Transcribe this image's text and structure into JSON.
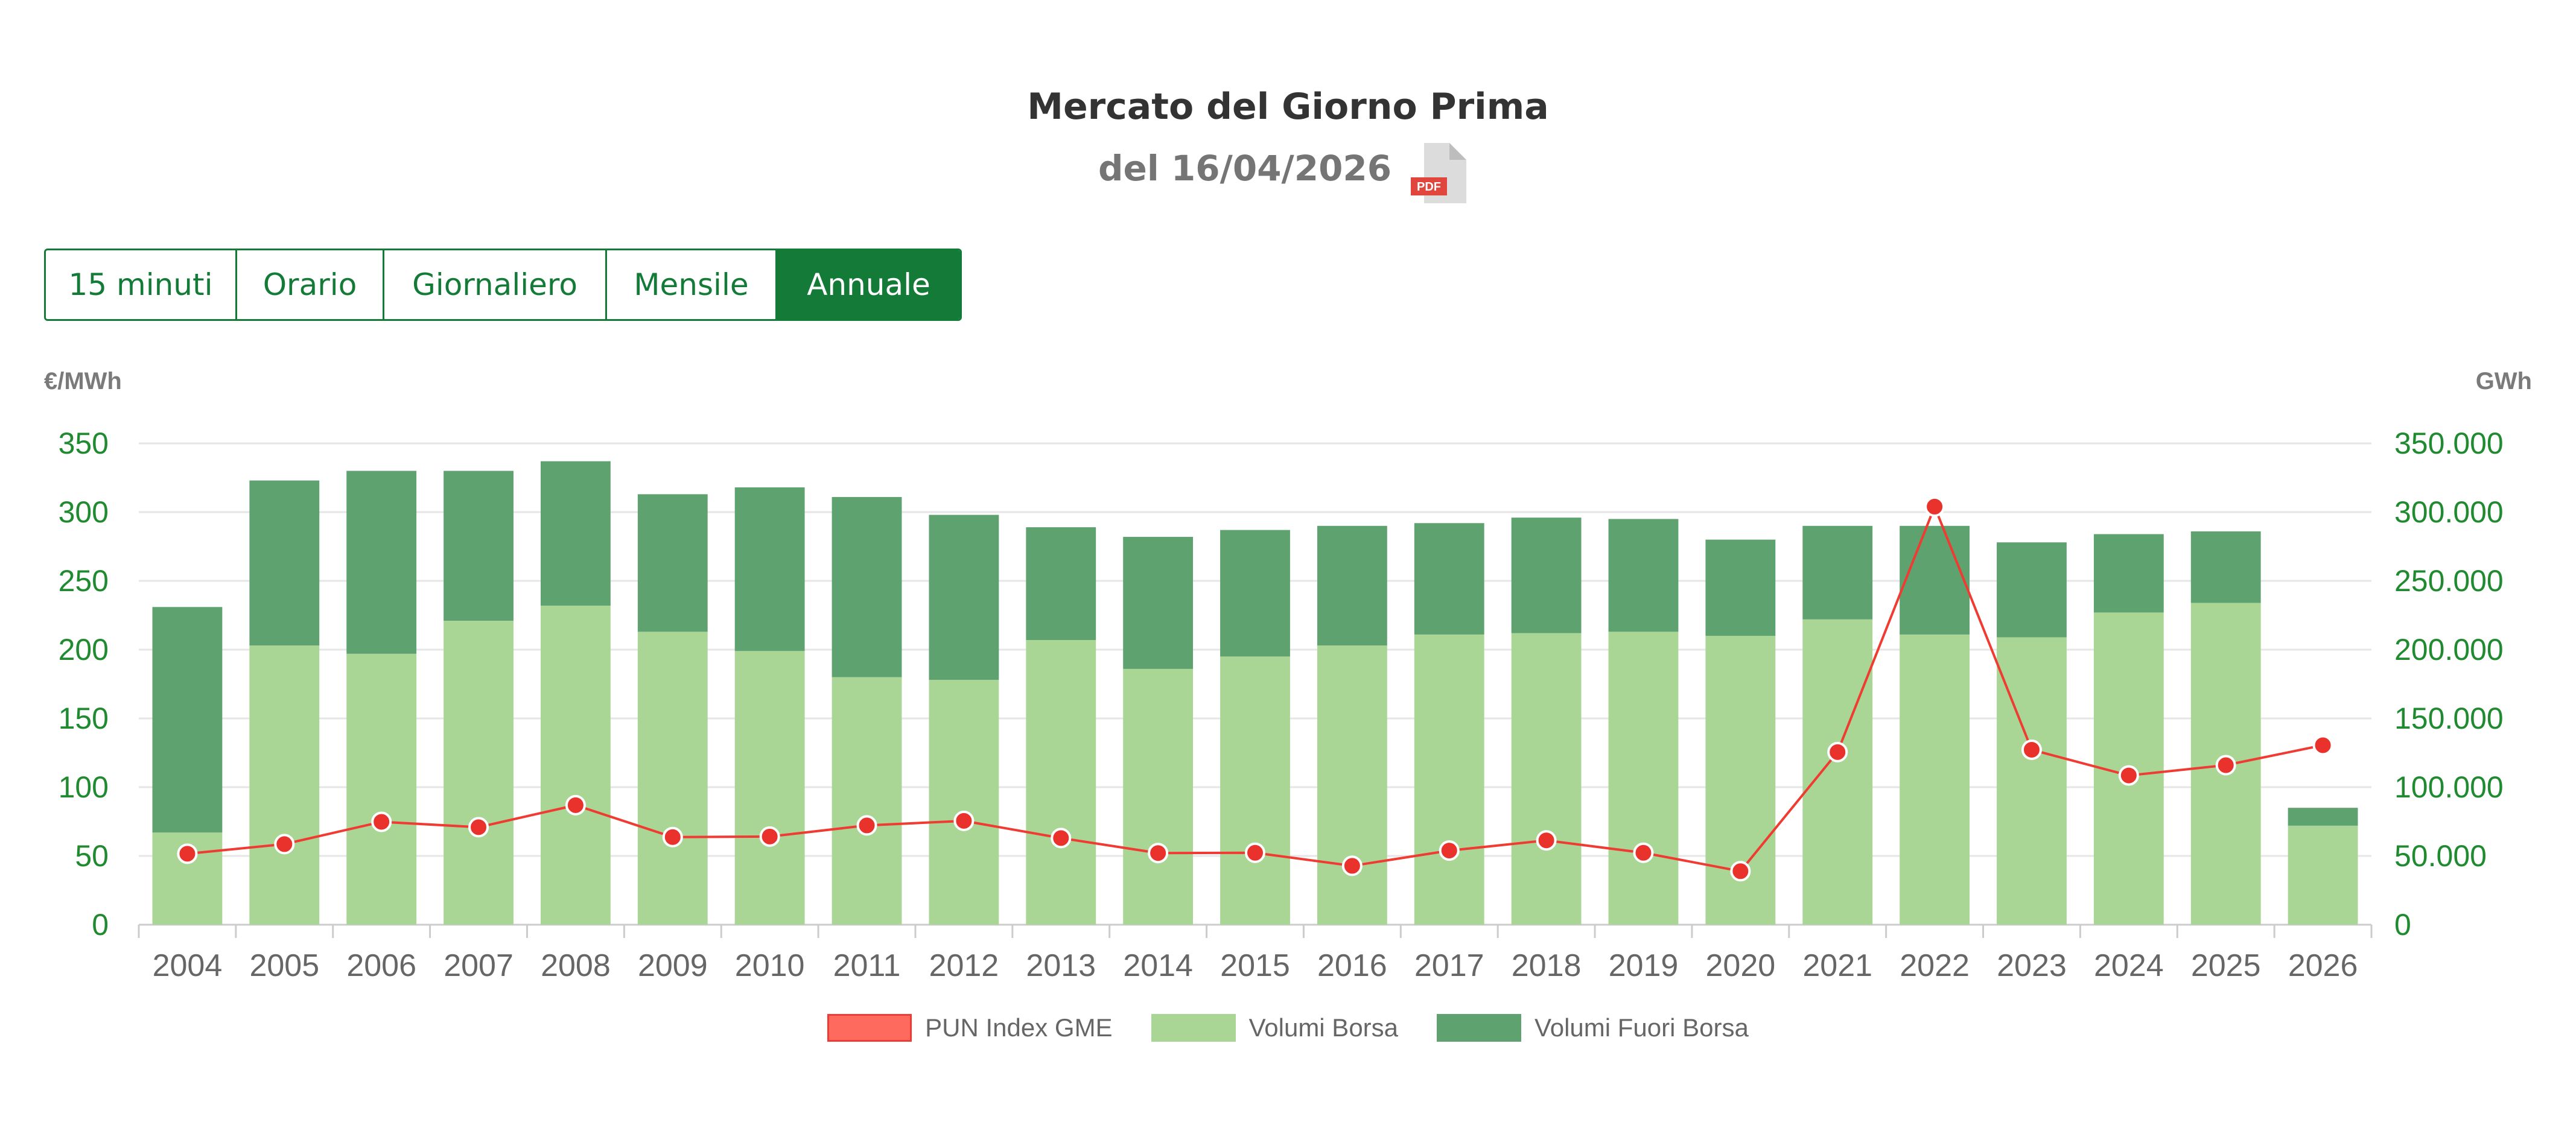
{
  "header": {
    "title": "Mercato del Giorno Prima",
    "subtitle": "del 16/04/2026",
    "pdf_icon": "pdf-file-icon",
    "pdf_label": "PDF"
  },
  "tabs": [
    {
      "label": "15 minuti",
      "active": false
    },
    {
      "label": "Orario",
      "active": false
    },
    {
      "label": "Giornaliero",
      "active": false
    },
    {
      "label": "Mensile",
      "active": false
    },
    {
      "label": "Annuale",
      "active": true
    }
  ],
  "colors": {
    "accent": "#137a37",
    "pun": "#ef3b32",
    "borsa": "#a9d695",
    "fuori_borsa": "#5ea26f",
    "tick": "#1f8a2f"
  },
  "chart_data": {
    "type": "bar",
    "stacked": true,
    "grid": true,
    "legend_position": "bottom",
    "y_left": {
      "label": "€/MWh",
      "min": 0,
      "max": 350,
      "ticks": [
        "0",
        "50",
        "100",
        "150",
        "200",
        "250",
        "300",
        "350"
      ]
    },
    "y_right": {
      "label": "GWh",
      "min": 0,
      "max": 350000,
      "ticks": [
        "0",
        "50.000",
        "100.000",
        "150.000",
        "200.000",
        "250.000",
        "300.000",
        "350.000"
      ]
    },
    "categories": [
      "2004",
      "2005",
      "2006",
      "2007",
      "2008",
      "2009",
      "2010",
      "2011",
      "2012",
      "2013",
      "2014",
      "2015",
      "2016",
      "2017",
      "2018",
      "2019",
      "2020",
      "2021",
      "2022",
      "2023",
      "2024",
      "2025",
      "2026"
    ],
    "series": [
      {
        "name": "PUN Index GME",
        "type": "line",
        "axis": "left",
        "values": [
          51.6,
          58.6,
          74.8,
          70.9,
          86.9,
          63.7,
          64.1,
          72.2,
          75.5,
          63.0,
          52.1,
          52.3,
          42.8,
          53.9,
          61.3,
          52.3,
          38.9,
          125.5,
          304.0,
          127.2,
          108.5,
          116.0,
          130.5
        ]
      },
      {
        "name": "Volumi Borsa",
        "type": "bar",
        "axis": "right",
        "values": [
          67000,
          203000,
          197000,
          221000,
          232000,
          213000,
          199000,
          180000,
          178000,
          207000,
          186000,
          195000,
          203000,
          211000,
          212000,
          213000,
          210000,
          222000,
          211000,
          209000,
          227000,
          234000,
          72000
        ]
      },
      {
        "name": "Volumi Fuori Borsa",
        "type": "bar",
        "axis": "right",
        "values": [
          164000,
          120000,
          133000,
          109000,
          105000,
          100000,
          119000,
          131000,
          120000,
          82000,
          96000,
          92000,
          87000,
          81000,
          84000,
          82000,
          70000,
          68000,
          79000,
          69000,
          57000,
          52000,
          13000
        ]
      }
    ]
  }
}
